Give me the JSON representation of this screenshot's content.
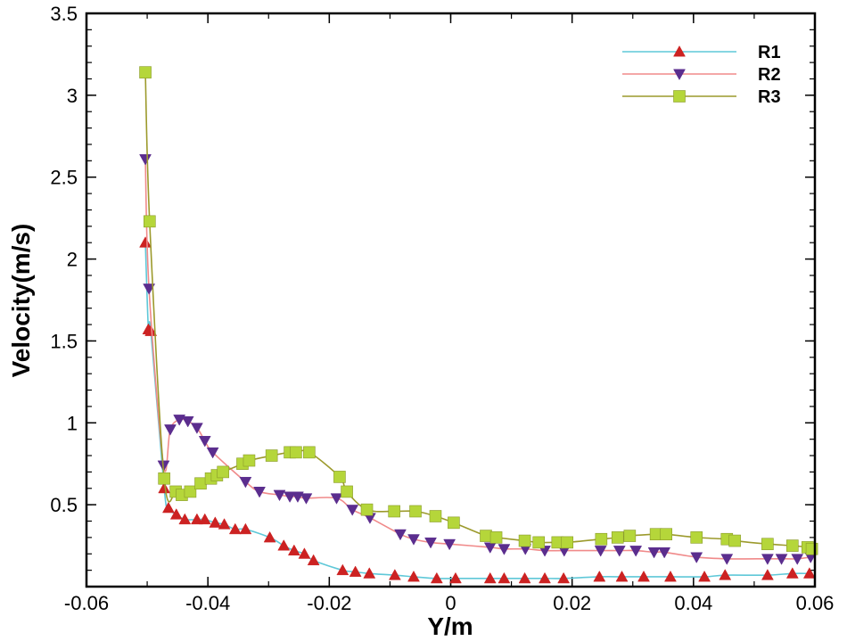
{
  "chart_data": {
    "type": "line",
    "xlabel": "Y/m",
    "ylabel": "Velocity(m/s)",
    "xlim": [
      -0.06,
      0.06
    ],
    "ylim": [
      0,
      3.5
    ],
    "xticks": [
      -0.06,
      -0.04,
      -0.02,
      0,
      0.02,
      0.04,
      0.06
    ],
    "xtick_labels": [
      "-0.06",
      "-0.04",
      "-0.02",
      "0",
      "0.02",
      "0.04",
      "0.06"
    ],
    "yticks": [
      0.5,
      1,
      1.5,
      2,
      2.5,
      3,
      3.5
    ],
    "ytick_labels": [
      "0.5",
      "1",
      "1.5",
      "2",
      "2.5",
      "3",
      "3.5"
    ],
    "legend_position": "top-right",
    "series": [
      {
        "name": "R1",
        "line_color": "#5fc8d8",
        "marker": "triangle-up",
        "marker_color": "#cc2222",
        "x": [
          -0.0503,
          -0.0498,
          -0.0494,
          -0.0472,
          -0.0465,
          -0.0452,
          -0.0438,
          -0.0418,
          -0.0405,
          -0.0388,
          -0.0373,
          -0.0355,
          -0.0338,
          -0.0298,
          -0.0275,
          -0.0258,
          -0.0241,
          -0.0226,
          -0.0178,
          -0.0157,
          -0.0134,
          -0.0092,
          -0.0061,
          -0.0023,
          0.0008,
          0.0065,
          0.0088,
          0.0122,
          0.0155,
          0.0186,
          0.0245,
          0.0282,
          0.0318,
          0.0362,
          0.0418,
          0.0452,
          0.0522,
          0.0563,
          0.0591
        ],
        "y": [
          2.1,
          1.57,
          1.56,
          0.6,
          0.48,
          0.44,
          0.41,
          0.41,
          0.41,
          0.39,
          0.38,
          0.35,
          0.35,
          0.3,
          0.25,
          0.22,
          0.2,
          0.16,
          0.1,
          0.09,
          0.08,
          0.07,
          0.06,
          0.05,
          0.05,
          0.05,
          0.05,
          0.05,
          0.05,
          0.05,
          0.06,
          0.06,
          0.06,
          0.06,
          0.06,
          0.07,
          0.07,
          0.08,
          0.08
        ]
      },
      {
        "name": "R2",
        "line_color": "#f08a8a",
        "marker": "triangle-down",
        "marker_color": "#5b2d8e",
        "x": [
          -0.0503,
          -0.0497,
          -0.0473,
          -0.0462,
          -0.0447,
          -0.0433,
          -0.0418,
          -0.0405,
          -0.0392,
          -0.0338,
          -0.0315,
          -0.0282,
          -0.0265,
          -0.0252,
          -0.0238,
          -0.0188,
          -0.0162,
          -0.0133,
          -0.0083,
          -0.0061,
          -0.0033,
          -0.0002,
          0.0065,
          0.0088,
          0.0123,
          0.0155,
          0.0187,
          0.0247,
          0.0278,
          0.0305,
          0.0335,
          0.0352,
          0.0405,
          0.0455,
          0.0522,
          0.0545,
          0.0571,
          0.0593
        ],
        "y": [
          2.61,
          1.82,
          0.74,
          0.96,
          1.02,
          1.01,
          0.97,
          0.89,
          0.82,
          0.64,
          0.58,
          0.56,
          0.55,
          0.55,
          0.54,
          0.54,
          0.47,
          0.42,
          0.32,
          0.29,
          0.27,
          0.26,
          0.24,
          0.23,
          0.23,
          0.22,
          0.22,
          0.22,
          0.22,
          0.22,
          0.21,
          0.21,
          0.18,
          0.17,
          0.17,
          0.17,
          0.17,
          0.18
        ]
      },
      {
        "name": "R3",
        "line_color": "#9c9a2c",
        "marker": "square",
        "marker_color": "#b5d63a",
        "x": [
          -0.0503,
          -0.0496,
          -0.0472,
          -0.0453,
          -0.0443,
          -0.0429,
          -0.0412,
          -0.0395,
          -0.0385,
          -0.0375,
          -0.0343,
          -0.0332,
          -0.0295,
          -0.0265,
          -0.0255,
          -0.0233,
          -0.0183,
          -0.0171,
          -0.0138,
          -0.0093,
          -0.0058,
          -0.0025,
          0.0005,
          0.0058,
          0.0075,
          0.0122,
          0.0145,
          0.0176,
          0.0192,
          0.0248,
          0.0275,
          0.0295,
          0.0338,
          0.0355,
          0.0405,
          0.0455,
          0.0468,
          0.0522,
          0.0563,
          0.0588,
          0.0595
        ],
        "y": [
          3.14,
          2.23,
          0.66,
          0.58,
          0.56,
          0.58,
          0.63,
          0.66,
          0.68,
          0.7,
          0.75,
          0.77,
          0.8,
          0.82,
          0.82,
          0.82,
          0.67,
          0.58,
          0.47,
          0.46,
          0.46,
          0.43,
          0.39,
          0.31,
          0.3,
          0.28,
          0.27,
          0.27,
          0.27,
          0.29,
          0.3,
          0.31,
          0.32,
          0.32,
          0.3,
          0.29,
          0.28,
          0.26,
          0.25,
          0.24,
          0.23
        ]
      }
    ]
  }
}
